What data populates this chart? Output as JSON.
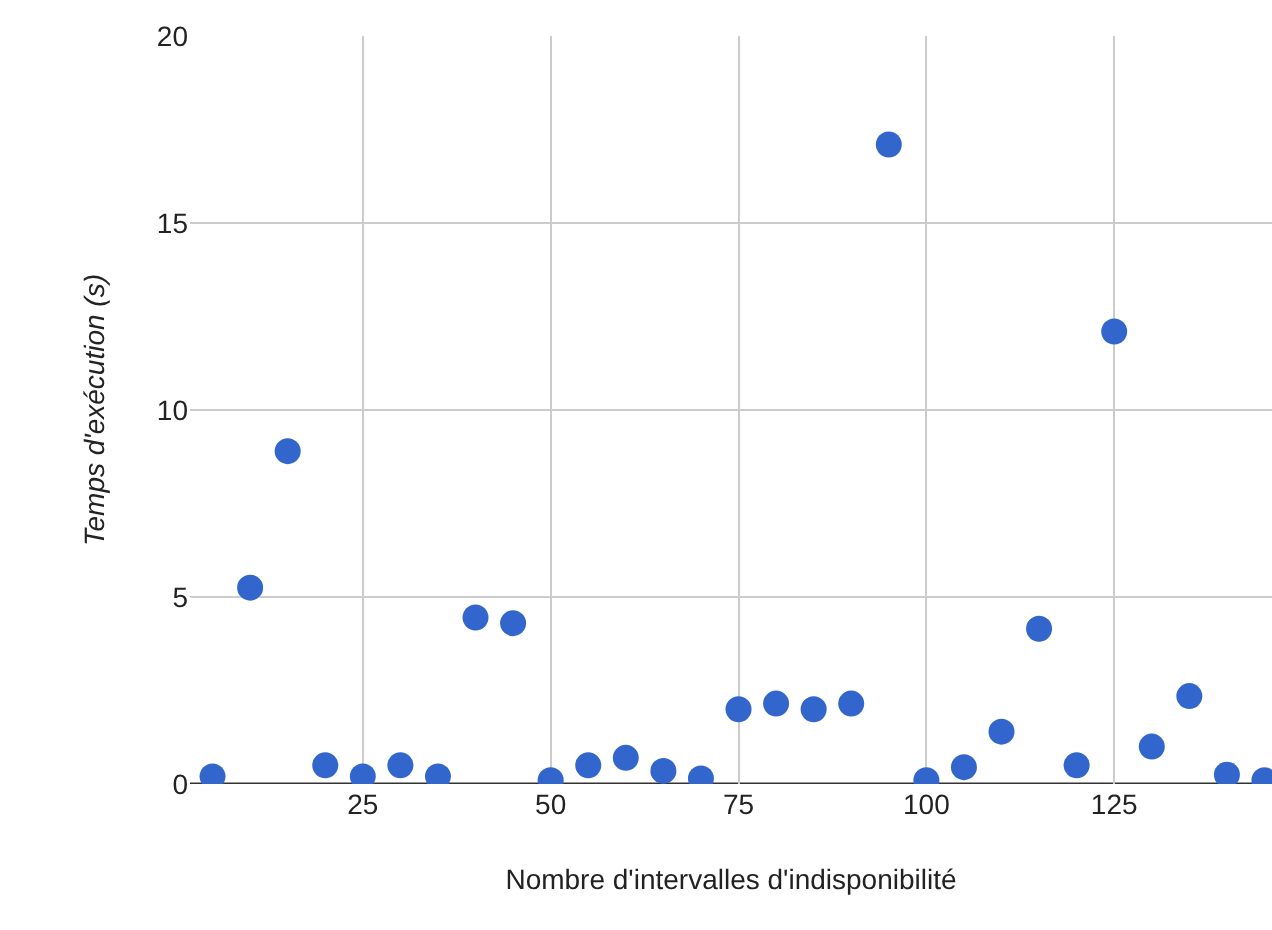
{
  "chart_data": {
    "type": "scatter",
    "xlabel": "Nombre d'intervalles d'indisponibilité",
    "ylabel": "Temps d'exécution (s)",
    "x": [
      5,
      10,
      15,
      20,
      25,
      30,
      35,
      40,
      45,
      50,
      55,
      60,
      65,
      70,
      75,
      80,
      85,
      90,
      95,
      100,
      105,
      110,
      115,
      120,
      125,
      130,
      135,
      140,
      145
    ],
    "series": [
      {
        "color": "#3366cc",
        "values": [
          0.2,
          5.25,
          8.9,
          0.5,
          0.2,
          0.5,
          0.2,
          4.45,
          4.3,
          0.1,
          0.5,
          0.7,
          0.35,
          0.15,
          2.0,
          2.15,
          2.0,
          2.15,
          17.1,
          0.1,
          0.45,
          1.4,
          4.15,
          0.5,
          12.1,
          1.0,
          2.35,
          0.25,
          0.1
        ]
      }
    ],
    "xlim": [
      2,
      146
    ],
    "xticks": [
      25,
      50,
      75,
      100,
      125
    ],
    "ylim": [
      0,
      20
    ],
    "yticks": [
      0,
      5,
      10,
      15,
      20
    ],
    "grid": true,
    "marker": "circle"
  }
}
